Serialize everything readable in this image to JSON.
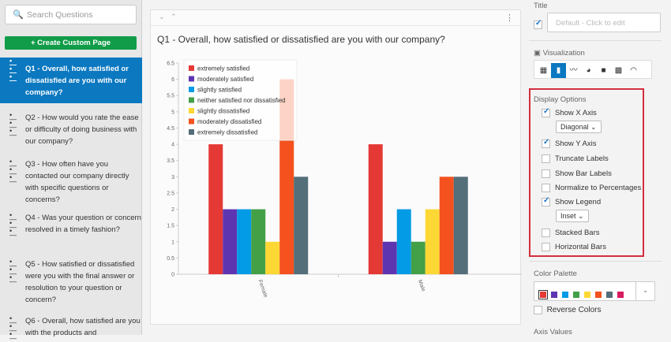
{
  "sidebar": {
    "search_placeholder": "Search Questions",
    "create_label": "+ Create Custom Page",
    "items": [
      {
        "label": "Q1 - Overall, how satisfied or dissatisfied are you with our company?"
      },
      {
        "label": "Q2 - How would you rate the ease or difficulty of doing business with our company?"
      },
      {
        "label": "Q3 - How often have you contacted our company directly with specific questions or concerns?"
      },
      {
        "label": "Q4 - Was your question or concern resolved in a timely fashion?"
      },
      {
        "label": "Q5 - How satisfied or dissatisfied were you with the final answer or resolution to your question or concern?"
      },
      {
        "label": "Q6 - Overall, how satisfied are you with the products and"
      }
    ]
  },
  "card": {
    "title": "Q1 - Overall, how satisfied or dissatisfied are you with our company?"
  },
  "chart_data": {
    "type": "bar",
    "categories": [
      "Female",
      "Male"
    ],
    "yticks": [
      "0",
      "0.5",
      "1",
      "1.5",
      "2",
      "2.5",
      "3",
      "3.5",
      "4",
      "4.5",
      "5",
      "5.5",
      "6",
      "6.5"
    ],
    "ylim": [
      0,
      6.5
    ],
    "legend": "top-left inset",
    "series": [
      {
        "name": "extremely satisfied",
        "color": "#e53935",
        "values": [
          4,
          4
        ]
      },
      {
        "name": "moderately satisfied",
        "color": "#5e35b1",
        "values": [
          2,
          1
        ]
      },
      {
        "name": "slightly satisfied",
        "color": "#039be5",
        "values": [
          2,
          2
        ]
      },
      {
        "name": "neither satisfied nor dissatisfied",
        "color": "#43a047",
        "values": [
          2,
          1
        ]
      },
      {
        "name": "slightly dissatisfied",
        "color": "#fdd835",
        "values": [
          1,
          2
        ]
      },
      {
        "name": "moderately dissatisfied",
        "color": "#f4511e",
        "values": [
          6,
          3
        ]
      },
      {
        "name": "extremely dissatisfied",
        "color": "#546e7a",
        "values": [
          3,
          3
        ]
      }
    ]
  },
  "panel": {
    "title_label": "Title",
    "title_placeholder": "Default - Click to edit",
    "visualization_label": "Visualization",
    "display_options_label": "Display Options",
    "options": [
      {
        "label": "Show X Axis",
        "checked": true
      },
      {
        "label": "Show Y Axis",
        "checked": true
      },
      {
        "label": "Truncate Labels",
        "checked": false
      },
      {
        "label": "Show Bar Labels",
        "checked": false
      },
      {
        "label": "Normalize to Percentages",
        "checked": false
      },
      {
        "label": "Show Legend",
        "checked": true
      },
      {
        "label": "Stacked Bars",
        "checked": false
      },
      {
        "label": "Horizontal Bars",
        "checked": false
      }
    ],
    "x_axis_select": "Diagonal",
    "legend_select": "Inset",
    "color_palette_label": "Color Palette",
    "palette": [
      "#e53935",
      "#5e35b1",
      "#039be5",
      "#43a047",
      "#fdd835",
      "#f4511e",
      "#546e7a",
      "#d81b60"
    ],
    "reverse_colors_label": "Reverse Colors",
    "axis_values_label": "Axis Values"
  }
}
